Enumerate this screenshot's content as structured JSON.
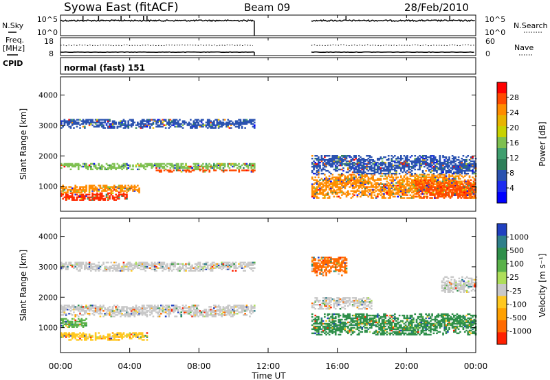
{
  "header": {
    "station": "Syowa East (fitACF)",
    "beam": "Beam 09",
    "date": "28/Feb/2010"
  },
  "left_labels": {
    "nsky": "N.Sky",
    "freq_line1": "Freq.",
    "freq_line2": "[MHz]",
    "cpid": "CPID"
  },
  "right_labels": {
    "nsearch": "N.Search",
    "nave": "Nave"
  },
  "noise_panel": {
    "left_ticks": [
      "10^5",
      "10^0"
    ],
    "right_ticks": [
      "10^5",
      "10^0"
    ]
  },
  "freq_panel": {
    "left_ticks": [
      "18",
      "8"
    ],
    "right_ticks": [
      "60",
      "0"
    ]
  },
  "cpid_text": "normal (fast) 151",
  "xaxis": {
    "label": "Time UT",
    "ticks": [
      "00:00",
      "04:00",
      "08:00",
      "12:00",
      "16:00",
      "20:00",
      "00:00"
    ]
  },
  "chart_data": [
    {
      "type": "heatmap",
      "panel": "power",
      "ylabel": "Slant Range [km]",
      "yticks": [
        1000,
        2000,
        3000,
        4000
      ],
      "ylim": [
        180,
        4600
      ],
      "xlim_hours": [
        0,
        24
      ],
      "data_gap_hours": [
        11.2,
        14.5
      ],
      "colorbar": {
        "label": "Power [dB]",
        "ticks": [
          "28",
          "24",
          "20",
          "16",
          "12",
          "8",
          "4"
        ],
        "colors": [
          "#ff0000",
          "#ff4a00",
          "#ff8c00",
          "#e8b400",
          "#c8d200",
          "#7ec050",
          "#3f9e6e",
          "#2e7f5a",
          "#2a52b0",
          "#1d2cf0",
          "#0000ff"
        ]
      },
      "features": [
        {
          "from_h": 0.0,
          "to_h": 11.2,
          "center_km": 3050,
          "spread_km": 150,
          "color": "#2a52b0"
        },
        {
          "from_h": 0.0,
          "to_h": 11.2,
          "center_km": 1650,
          "spread_km": 110,
          "color": "#7ec050"
        },
        {
          "from_h": 5.5,
          "to_h": 11.2,
          "center_km": 1500,
          "spread_km": 40,
          "color": "#ff4a00"
        },
        {
          "from_h": 0.0,
          "to_h": 3.8,
          "center_km": 650,
          "spread_km": 120,
          "color": "#ff2a00"
        },
        {
          "from_h": 0.0,
          "to_h": 4.5,
          "center_km": 900,
          "spread_km": 120,
          "color": "#ff8c00"
        },
        {
          "from_h": 14.5,
          "to_h": 24.0,
          "center_km": 1000,
          "spread_km": 400,
          "color": "#ff8c00"
        },
        {
          "from_h": 14.5,
          "to_h": 24.0,
          "center_km": 1700,
          "spread_km": 300,
          "color": "#2a52b0"
        },
        {
          "from_h": 20.5,
          "to_h": 24.0,
          "center_km": 900,
          "spread_km": 300,
          "color": "#ff4a00"
        }
      ]
    },
    {
      "type": "heatmap",
      "panel": "velocity",
      "ylabel": "Slant Range [km]",
      "yticks": [
        1000,
        2000,
        3000,
        4000
      ],
      "ylim": [
        180,
        4600
      ],
      "xlim_hours": [
        0,
        24
      ],
      "data_gap_hours": [
        11.2,
        14.5
      ],
      "colorbar": {
        "label": "Velocity [m s⁻¹]",
        "ticks": [
          "1000",
          "500",
          "100",
          "25",
          "-25",
          "-100",
          "-500",
          "-1000"
        ],
        "colors": [
          "#2040c0",
          "#2e7f8a",
          "#2e8f4a",
          "#5ab24a",
          "#aede5a",
          "#c8c8c8",
          "#ffc820",
          "#ffa000",
          "#ff6a00",
          "#ff2000"
        ]
      },
      "features": [
        {
          "from_h": 0.0,
          "to_h": 11.2,
          "center_km": 1550,
          "spread_km": 200,
          "color": "#c8c8c8"
        },
        {
          "from_h": 0.0,
          "to_h": 11.2,
          "center_km": 3000,
          "spread_km": 150,
          "color": "#c8c8c8"
        },
        {
          "from_h": 0.0,
          "to_h": 5.0,
          "center_km": 700,
          "spread_km": 120,
          "color": "#ffc820"
        },
        {
          "from_h": 0.0,
          "to_h": 1.5,
          "center_km": 1150,
          "spread_km": 150,
          "color": "#5ab24a"
        },
        {
          "from_h": 14.5,
          "to_h": 24.0,
          "center_km": 1100,
          "spread_km": 350,
          "color": "#2e8f4a"
        },
        {
          "from_h": 14.5,
          "to_h": 18.0,
          "center_km": 1800,
          "spread_km": 200,
          "color": "#c8c8c8"
        },
        {
          "from_h": 14.5,
          "to_h": 16.5,
          "center_km": 3000,
          "spread_km": 300,
          "color": "#ff6a00"
        },
        {
          "from_h": 22.0,
          "to_h": 24.0,
          "center_km": 2400,
          "spread_km": 250,
          "color": "#c8c8c8"
        }
      ]
    }
  ]
}
